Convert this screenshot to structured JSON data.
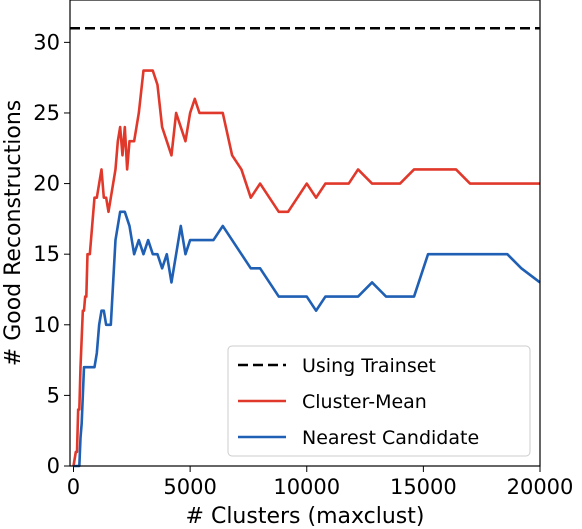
{
  "chart_data": {
    "type": "line",
    "title": "",
    "xlabel": "# Clusters (maxclust)",
    "ylabel": "# Good Reconstructions",
    "xlim": [
      -150,
      20000
    ],
    "ylim": [
      0,
      33
    ],
    "xticks": [
      0,
      5000,
      10000,
      15000,
      20000
    ],
    "yticks": [
      0,
      5,
      10,
      15,
      20,
      25,
      30
    ],
    "grid": false,
    "legend_position": "bottom-right",
    "series": [
      {
        "name": "Using Trainset",
        "color": "#000000",
        "dash": "dashed",
        "x": [
          -150,
          20000
        ],
        "y": [
          31,
          31
        ]
      },
      {
        "name": "Cluster-Mean",
        "color": "#e0392b",
        "dash": "solid",
        "x": [
          0,
          100,
          150,
          200,
          250,
          300,
          350,
          400,
          450,
          500,
          550,
          600,
          700,
          800,
          900,
          1000,
          1100,
          1200,
          1300,
          1400,
          1500,
          1600,
          1700,
          1800,
          1900,
          2000,
          2100,
          2200,
          2300,
          2400,
          2500,
          2600,
          2700,
          2800,
          3000,
          3200,
          3400,
          3600,
          3800,
          4000,
          4200,
          4400,
          4600,
          4800,
          5000,
          5200,
          5400,
          5600,
          6000,
          6400,
          6800,
          7200,
          7600,
          8000,
          8400,
          8800,
          9200,
          9600,
          10000,
          10400,
          10800,
          11200,
          11800,
          12200,
          12800,
          13400,
          14000,
          14600,
          15200,
          15600,
          16400,
          17000,
          17600,
          18200,
          18800,
          19400,
          20000
        ],
        "y": [
          0,
          1,
          1,
          4,
          4,
          7,
          9,
          11,
          11,
          12,
          12,
          15,
          15,
          17,
          19,
          19,
          20,
          21,
          19,
          19,
          18,
          19,
          20,
          21,
          23,
          24,
          22,
          24,
          21,
          23,
          23,
          23,
          24,
          25,
          28,
          28,
          28,
          27,
          24,
          23,
          22,
          25,
          24,
          23,
          25,
          26,
          25,
          25,
          25,
          25,
          22,
          21,
          19,
          20,
          19,
          18,
          18,
          19,
          20,
          19,
          20,
          20,
          20,
          21,
          20,
          20,
          20,
          21,
          21,
          21,
          21,
          20,
          20,
          20,
          20,
          20,
          20
        ]
      },
      {
        "name": "Nearest Candidate",
        "color": "#1f5fb4",
        "dash": "solid",
        "x": [
          0,
          100,
          150,
          200,
          250,
          300,
          350,
          400,
          450,
          500,
          600,
          700,
          800,
          900,
          1000,
          1100,
          1200,
          1300,
          1400,
          1500,
          1600,
          1700,
          1800,
          2000,
          2200,
          2400,
          2600,
          2800,
          3000,
          3200,
          3400,
          3600,
          3800,
          4000,
          4200,
          4400,
          4600,
          4800,
          5000,
          5200,
          5600,
          6000,
          6400,
          6800,
          7200,
          7600,
          8000,
          8400,
          8800,
          9200,
          9600,
          10000,
          10400,
          10800,
          11200,
          11800,
          12200,
          12800,
          13400,
          14000,
          14600,
          15200,
          15600,
          16200,
          16800,
          17400,
          18000,
          18600,
          19200,
          20000
        ],
        "y": [
          0,
          0,
          0,
          0,
          0,
          2,
          3,
          5,
          7,
          7,
          7,
          7,
          7,
          7,
          8,
          10,
          11,
          11,
          10,
          10,
          10,
          13,
          16,
          18,
          18,
          17,
          15,
          16,
          15,
          16,
          15,
          15,
          14,
          15,
          13,
          15,
          17,
          15,
          16,
          16,
          16,
          16,
          17,
          16,
          15,
          14,
          14,
          13,
          12,
          12,
          12,
          12,
          11,
          12,
          12,
          12,
          12,
          13,
          12,
          12,
          12,
          15,
          15,
          15,
          15,
          15,
          15,
          15,
          14,
          13
        ]
      }
    ]
  }
}
